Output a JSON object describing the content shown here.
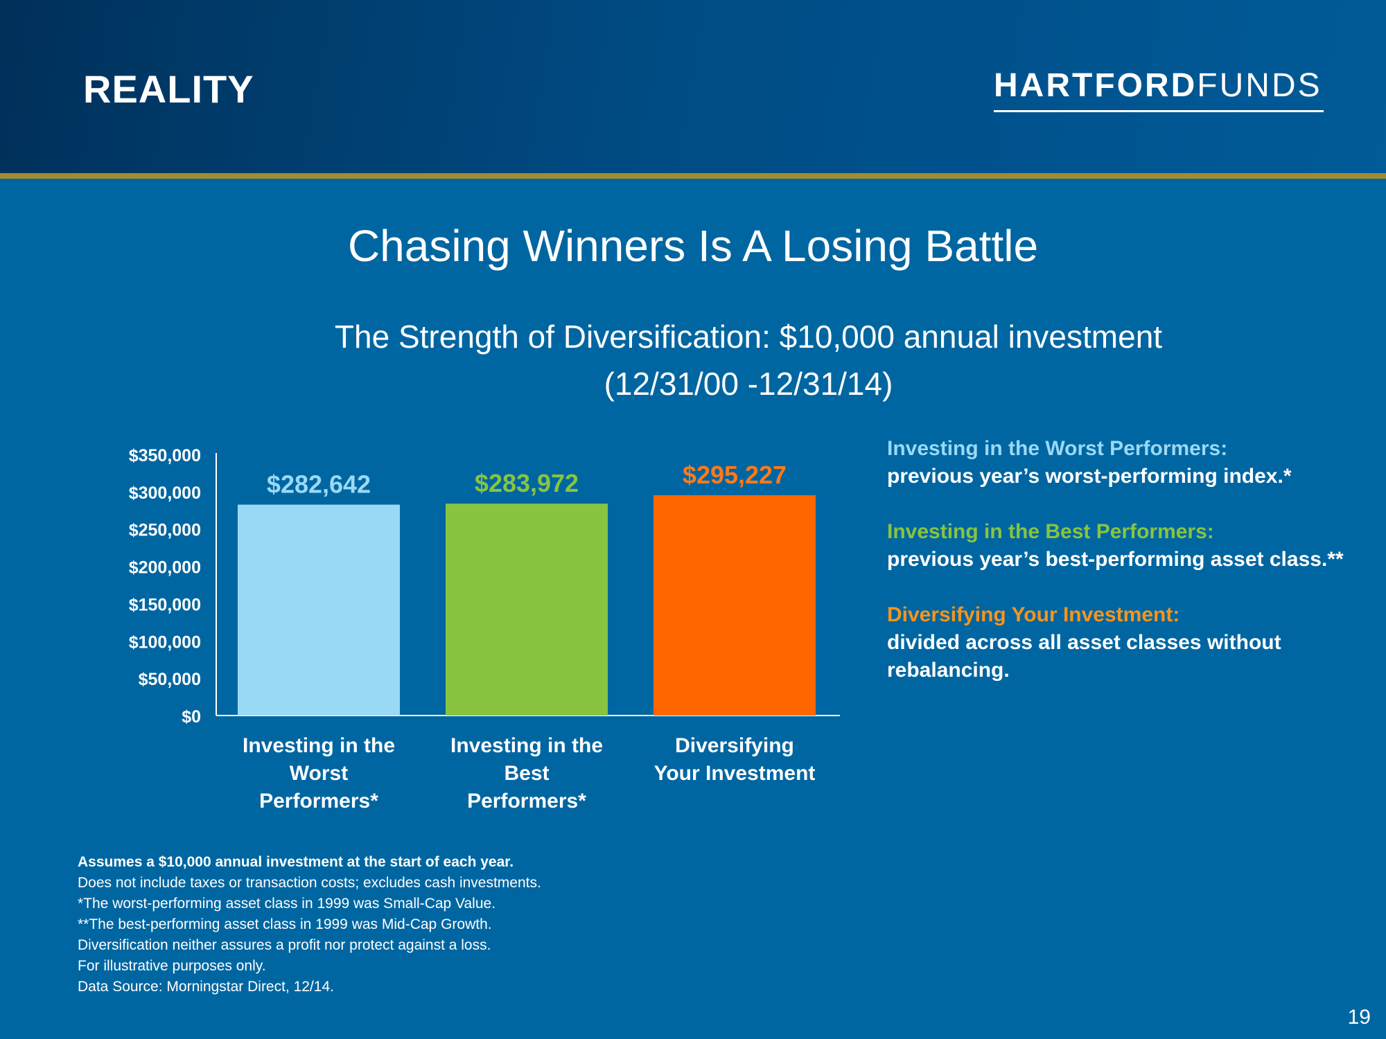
{
  "header": {
    "section_label": "REALITY",
    "logo_bold": "HARTFORD",
    "logo_light": "FUNDS"
  },
  "title": "Chasing Winners Is A Losing Battle",
  "subtitle": {
    "line1": "The Strength of Diversification: $10,000 annual investment",
    "line2": "(12/31/00 -12/31/14)"
  },
  "chart_data": {
    "type": "bar",
    "categories": [
      [
        "Investing in the",
        "Worst",
        "Performers*"
      ],
      [
        "Investing in the",
        "Best",
        "Performers*"
      ],
      [
        "Diversifying",
        "Your Investment"
      ]
    ],
    "values": [
      282642,
      283972,
      295227
    ],
    "data_labels": [
      "$282,642",
      "$283,972",
      "$295,227"
    ],
    "colors": [
      "#9ad9f5",
      "#88c440",
      "#ff6600"
    ],
    "label_colors": [
      "#9ad9f5",
      "#88c440",
      "#ff7a1a"
    ],
    "ylim": [
      0,
      350000
    ],
    "yticks": [
      0,
      50000,
      100000,
      150000,
      200000,
      250000,
      300000,
      350000
    ],
    "ytick_labels": [
      "$0",
      "$50,000",
      "$100,000",
      "$150,000",
      "$200,000",
      "$250,000",
      "$300,000",
      "$350,000"
    ],
    "grid": false,
    "xlabel": "",
    "ylabel": ""
  },
  "legend": [
    {
      "heading": "Investing in the Worst Performers:",
      "description": "previous year’s worst-performing index.*",
      "color": "#9ad9f5"
    },
    {
      "heading": "Investing in the Best Performers:",
      "description": "previous year’s best-performing asset class.**",
      "color": "#88c440"
    },
    {
      "heading": "Diversifying Your Investment:",
      "description": "divided across all asset classes without rebalancing.",
      "color": "#f7941d"
    }
  ],
  "notes": [
    "Assumes a $10,000 annual investment at the start of each year.",
    "Does not include taxes or transaction costs; excludes cash investments.",
    "*The worst-performing asset class in 1999 was Small-Cap Value.",
    "**The best-performing asset class in 1999 was Mid-Cap Growth.",
    "Diversification neither assures a profit nor protect against a loss.",
    "For illustrative purposes only.",
    "Data Source: Morningstar Direct, 12/14."
  ],
  "page_number": "19"
}
